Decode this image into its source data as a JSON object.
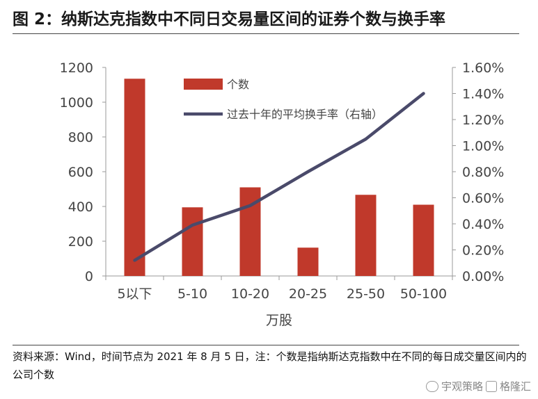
{
  "title": "图 2：纳斯达克指数中不同日交易量区间的证券个数与换手率",
  "source": "资料来源：Wind，时间节点为 2021 年 8 月 5 日，注：个数是指纳斯达克指数中在不同的每日成交量区间内的公司个数",
  "watermark": {
    "text1": "宇观策略",
    "text2": "格隆汇"
  },
  "chart_data": {
    "type": "bar",
    "xlabel": "万股",
    "categories": [
      "5以下",
      "5-10",
      "10-20",
      "20-25",
      "25-50",
      "50-100"
    ],
    "series": [
      {
        "name": "个数",
        "type": "bar",
        "axis": "left",
        "color": "#c0392b",
        "values": [
          1135,
          395,
          510,
          163,
          467,
          410
        ]
      },
      {
        "name": "过去十年的平均换手率（右轴）",
        "type": "line",
        "axis": "right",
        "color": "#4a4a6a",
        "values": [
          0.0012,
          0.0039,
          0.0054,
          0.008,
          0.0105,
          0.014
        ]
      }
    ],
    "left_axis": {
      "min": 0,
      "max": 1200,
      "ticks": [
        0,
        200,
        400,
        600,
        800,
        1000,
        1200
      ]
    },
    "right_axis": {
      "min": 0,
      "max": 0.016,
      "tick_labels": [
        "0.00%",
        "0.20%",
        "0.40%",
        "0.60%",
        "0.80%",
        "1.00%",
        "1.20%",
        "1.40%",
        "1.60%"
      ]
    }
  }
}
